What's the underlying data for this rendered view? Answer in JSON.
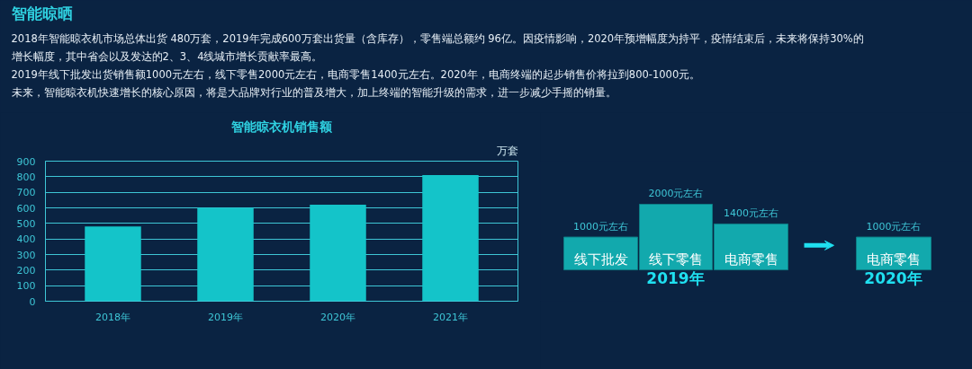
{
  "chart_data": [
    {
      "type": "other",
      "title": "智能晾晒",
      "annotations": [
        "2018年智能晾衣机市场总体出货 480万套，2019年完成600万套出货量（含库存），零售端总额约 96亿。因疫情影响，2020年预增幅度为持平，疫情结束后，未来将保持30%的",
        "增长幅度，其中省会以及发达的2、3、4线城市增长贡献率最高。",
        "2019年线下批发出货销售额1000元左右，线下零售2000元左右，电商零售1400元左右。2020年，电商终端的起步销售价将拉到800-1000元。",
        "未来，智能晾衣机快速增长的核心原因，将是大品牌对行业的普及增大，加上终端的智能升级的需求，进一步减少手摇的销量。"
      ]
    },
    {
      "type": "bar",
      "title": "智能晾衣机销售额",
      "ylabel": "万套",
      "categories": [
        "2018年",
        "2019年",
        "2020年",
        "2021年"
      ],
      "series": [
        {
          "color": "#14c4c9",
          "values": [
            480,
            600,
            620,
            810
          ]
        }
      ],
      "ylim": [
        0,
        900
      ],
      "yticks": [
        0,
        100,
        200,
        300,
        400,
        500,
        600,
        700,
        800,
        900
      ],
      "grid": "y"
    },
    {
      "type": "bar",
      "categories": [
        "线下批发",
        "线下零售",
        "电商零售",
        "电商零售"
      ],
      "values": [
        1000,
        2000,
        1400,
        1000
      ],
      "color": "#12a9ad",
      "value_labels": [
        "1000元左右",
        "2000元左右",
        "1400元左右",
        "1000元左右"
      ],
      "annotations": [
        "2019年",
        "2020年"
      ]
    }
  ]
}
